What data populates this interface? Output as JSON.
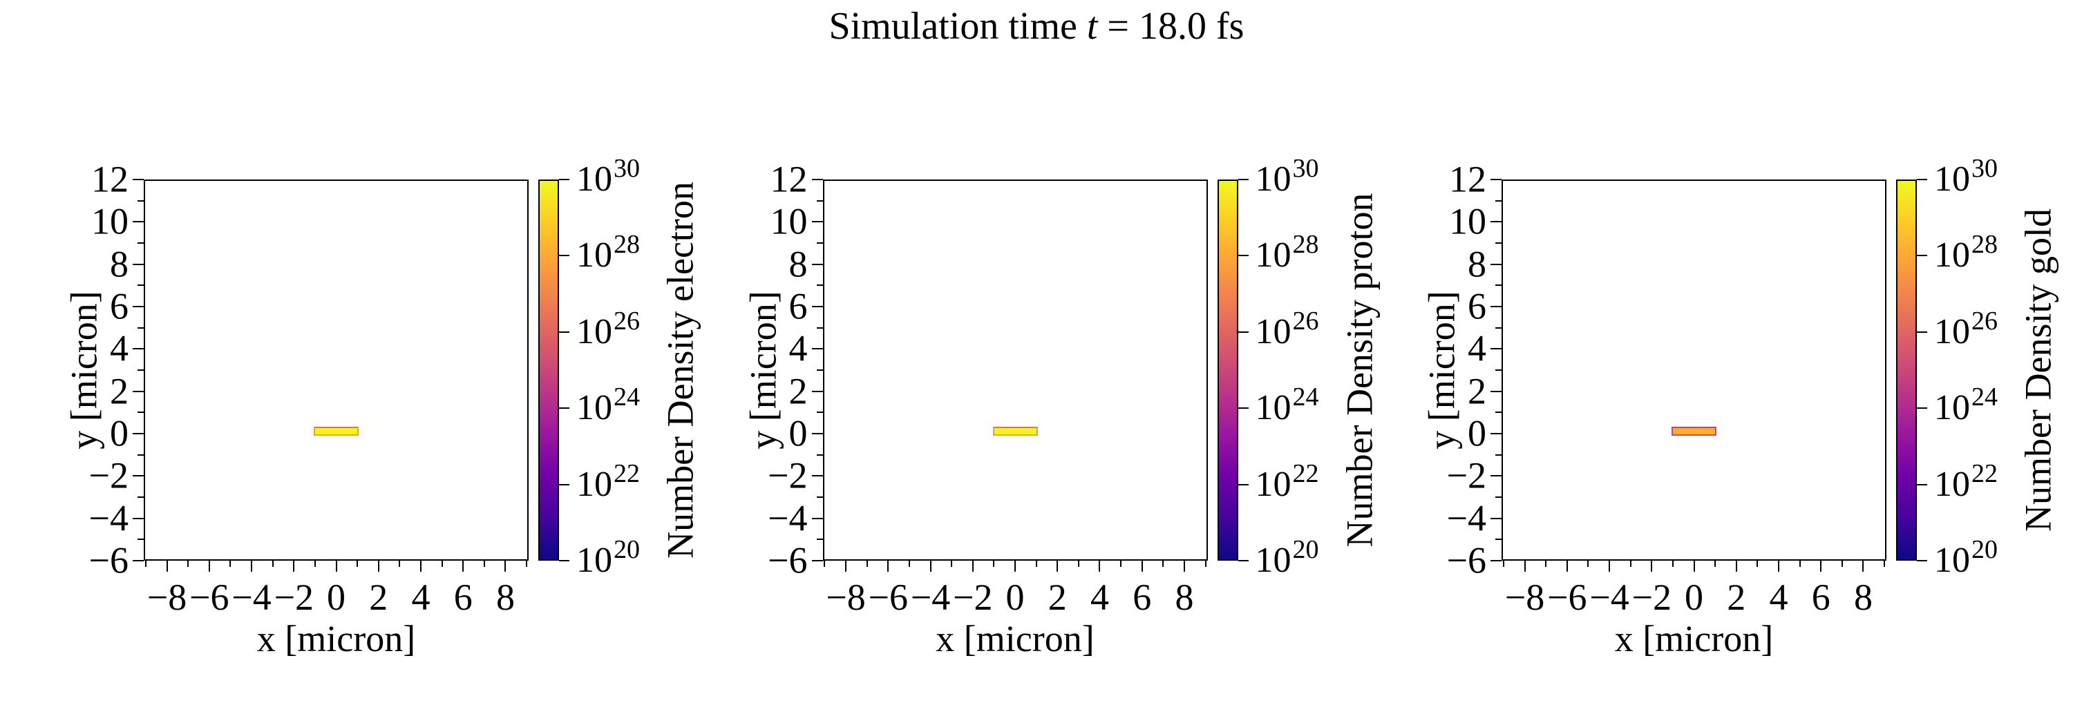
{
  "title": {
    "prefix": "Simulation time ",
    "variable": "t",
    "suffix": " = 18.0 fs",
    "full": "Simulation time t = 18.0 fs"
  },
  "colormap": {
    "name": "plasma",
    "stops": [
      "#f0f921",
      "#fdca26",
      "#fb9f3a",
      "#ed7953",
      "#d8576b",
      "#bd3786",
      "#9c179e",
      "#7201a8",
      "#46039f",
      "#0d0887"
    ]
  },
  "panels": [
    {
      "species": "electron",
      "xlabel": "x [micron]",
      "ylabel": "y [micron]",
      "colorbar_label": "Number Density electron",
      "x_tick_labels": [
        "−8",
        "−6",
        "−4",
        "−2",
        "0",
        "2",
        "4",
        "6",
        "8"
      ],
      "y_tick_labels": [
        "12",
        "10",
        "8",
        "6",
        "4",
        "2",
        "0",
        "−2",
        "−4",
        "−6"
      ],
      "cb_ticks": [
        {
          "base": "10",
          "exp": "30"
        },
        {
          "base": "10",
          "exp": "28"
        },
        {
          "base": "10",
          "exp": "26"
        },
        {
          "base": "10",
          "exp": "24"
        },
        {
          "base": "10",
          "exp": "22"
        },
        {
          "base": "10",
          "exp": "20"
        }
      ],
      "bar_colors": {
        "fill": "#f3f222",
        "edge": "#f89b3c",
        "top": "#ec6e57"
      }
    },
    {
      "species": "proton",
      "xlabel": "x [micron]",
      "ylabel": "y [micron]",
      "colorbar_label": "Number Density proton",
      "x_tick_labels": [
        "−8",
        "−6",
        "−4",
        "−2",
        "0",
        "2",
        "4",
        "6",
        "8"
      ],
      "y_tick_labels": [
        "12",
        "10",
        "8",
        "6",
        "4",
        "2",
        "0",
        "−2",
        "−4",
        "−6"
      ],
      "cb_ticks": [
        {
          "base": "10",
          "exp": "30"
        },
        {
          "base": "10",
          "exp": "28"
        },
        {
          "base": "10",
          "exp": "26"
        },
        {
          "base": "10",
          "exp": "24"
        },
        {
          "base": "10",
          "exp": "22"
        },
        {
          "base": "10",
          "exp": "20"
        }
      ],
      "bar_colors": {
        "fill": "#f3f222",
        "edge": "#f89b3c",
        "top": "#ec6e57"
      }
    },
    {
      "species": "gold",
      "xlabel": "x [micron]",
      "ylabel": "y [micron]",
      "colorbar_label": "Number Density gold",
      "x_tick_labels": [
        "−8",
        "−6",
        "−4",
        "−2",
        "0",
        "2",
        "4",
        "6",
        "8"
      ],
      "y_tick_labels": [
        "12",
        "10",
        "8",
        "6",
        "4",
        "2",
        "0",
        "−2",
        "−4",
        "−6"
      ],
      "cb_ticks": [
        {
          "base": "10",
          "exp": "30"
        },
        {
          "base": "10",
          "exp": "28"
        },
        {
          "base": "10",
          "exp": "26"
        },
        {
          "base": "10",
          "exp": "24"
        },
        {
          "base": "10",
          "exp": "22"
        },
        {
          "base": "10",
          "exp": "20"
        }
      ],
      "bar_colors": {
        "fill": "#fcae32",
        "edge": "#cc4778",
        "top": "#c5407e"
      }
    }
  ],
  "chart_data": [
    {
      "type": "heatmap",
      "series_name": "Number Density electron",
      "title": "Simulation time t = 18.0 fs",
      "xlabel": "x [micron]",
      "ylabel": "y [micron]",
      "xlim": [
        -9.1,
        9.1
      ],
      "ylim": [
        -6,
        12
      ],
      "x_ticks": [
        -8,
        -6,
        -4,
        -2,
        0,
        2,
        4,
        6,
        8
      ],
      "y_ticks": [
        12,
        10,
        8,
        6,
        4,
        2,
        0,
        -2,
        -4,
        -6
      ],
      "grid": false,
      "legend_position": "none",
      "colorbar": {
        "label": "Number Density electron",
        "scale": "log",
        "min": 1e+20,
        "max": 1e+30,
        "tick_values": [
          1e+30,
          1e+28,
          1e+26,
          1e+24,
          1e+22,
          1e+20
        ],
        "colormap": "plasma",
        "position": "right"
      },
      "data_points": [
        {
          "feature": "target slab",
          "x_range": [
            -1.1,
            1.0
          ],
          "y_range": [
            -0.05,
            0.35
          ],
          "value_approx": 1e+30,
          "rendered_color": "#f3f222",
          "edge_value_approx": 1e+28
        }
      ],
      "background": "empty (below colorbar minimum, white)"
    },
    {
      "type": "heatmap",
      "series_name": "Number Density proton",
      "title": "Simulation time t = 18.0 fs",
      "xlabel": "x [micron]",
      "ylabel": "y [micron]",
      "xlim": [
        -9.1,
        9.1
      ],
      "ylim": [
        -6,
        12
      ],
      "x_ticks": [
        -8,
        -6,
        -4,
        -2,
        0,
        2,
        4,
        6,
        8
      ],
      "y_ticks": [
        12,
        10,
        8,
        6,
        4,
        2,
        0,
        -2,
        -4,
        -6
      ],
      "grid": false,
      "legend_position": "none",
      "colorbar": {
        "label": "Number Density proton",
        "scale": "log",
        "min": 1e+20,
        "max": 1e+30,
        "tick_values": [
          1e+30,
          1e+28,
          1e+26,
          1e+24,
          1e+22,
          1e+20
        ],
        "colormap": "plasma",
        "position": "right"
      },
      "data_points": [
        {
          "feature": "target slab",
          "x_range": [
            -1.1,
            1.0
          ],
          "y_range": [
            -0.05,
            0.35
          ],
          "value_approx": 1e+30,
          "rendered_color": "#f3f222",
          "edge_value_approx": 1e+28
        }
      ],
      "background": "empty (below colorbar minimum, white)"
    },
    {
      "type": "heatmap",
      "series_name": "Number Density gold",
      "title": "Simulation time t = 18.0 fs",
      "xlabel": "x [micron]",
      "ylabel": "y [micron]",
      "xlim": [
        -9.1,
        9.1
      ],
      "ylim": [
        -6,
        12
      ],
      "x_ticks": [
        -8,
        -6,
        -4,
        -2,
        0,
        2,
        4,
        6,
        8
      ],
      "y_ticks": [
        12,
        10,
        8,
        6,
        4,
        2,
        0,
        -2,
        -4,
        -6
      ],
      "grid": false,
      "legend_position": "none",
      "colorbar": {
        "label": "Number Density gold",
        "scale": "log",
        "min": 1e+20,
        "max": 1e+30,
        "tick_values": [
          1e+30,
          1e+28,
          1e+26,
          1e+24,
          1e+22,
          1e+20
        ],
        "colormap": "plasma",
        "position": "right"
      },
      "data_points": [
        {
          "feature": "target slab",
          "x_range": [
            -1.1,
            1.0
          ],
          "y_range": [
            -0.05,
            0.35
          ],
          "value_approx": 2e+28,
          "rendered_color": "#fcae32",
          "edge_value_approx": 1e+24
        }
      ],
      "background": "empty (below colorbar minimum, white)"
    }
  ]
}
